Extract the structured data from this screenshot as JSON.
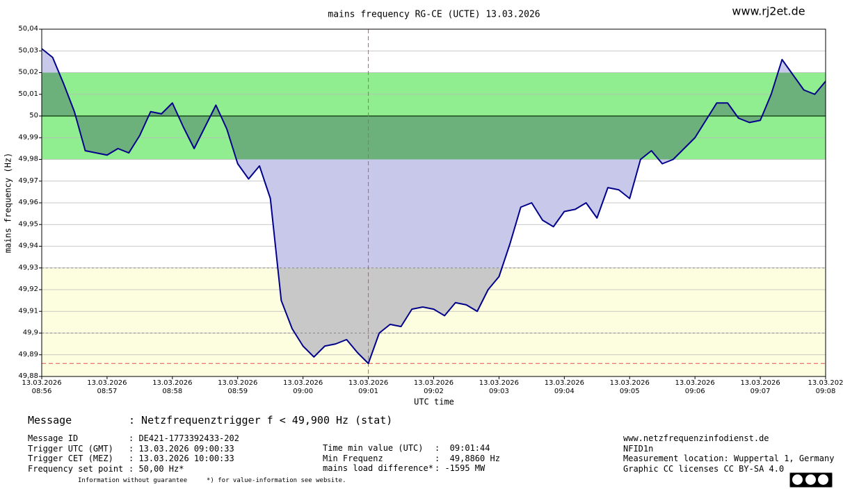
{
  "chart_data": {
    "type": "line",
    "title": "mains frequency RG-CE (UCTE) 13.03.2026",
    "watermark": "www.rj2et.de",
    "y_label": "mains frequency (Hz)",
    "x_label": "UTC time",
    "categories": [
      "13.03.2026\n08:56",
      null,
      null,
      null,
      null,
      null,
      "13.03.2026\n08:57",
      null,
      null,
      null,
      null,
      null,
      "13.03.2026\n08:58",
      null,
      null,
      null,
      null,
      null,
      "13.03.2026\n08:59",
      null,
      null,
      null,
      null,
      null,
      "13.03.2026\n09:00",
      null,
      null,
      null,
      null,
      null,
      "13.03.2026\n09:01",
      null,
      null,
      null,
      null,
      null,
      "13.03.2026\n09:02",
      null,
      null,
      null,
      null,
      null,
      "13.03.2026\n09:03",
      null,
      null,
      null,
      null,
      null,
      "13.03.2026\n09:04",
      null,
      null,
      null,
      null,
      null,
      "13.03.2026\n09:05",
      null,
      null,
      null,
      null,
      null,
      "13.03.2026\n09:06",
      null,
      null,
      null,
      null,
      null,
      "13.03.2026\n09:07",
      null,
      null,
      null,
      null,
      null,
      "13.03.202\n09:08"
    ],
    "values": [
      50.031,
      50.027,
      50.015,
      50.002,
      49.984,
      49.983,
      49.982,
      49.985,
      49.983,
      49.991,
      50.002,
      50.001,
      50.006,
      49.995,
      49.985,
      49.995,
      50.005,
      49.994,
      49.978,
      49.971,
      49.977,
      49.962,
      49.915,
      49.902,
      49.894,
      49.889,
      49.894,
      49.895,
      49.897,
      49.891,
      49.886,
      49.9,
      49.904,
      49.903,
      49.911,
      49.912,
      49.911,
      49.908,
      49.914,
      49.913,
      49.91,
      49.92,
      49.926,
      49.941,
      49.958,
      49.96,
      49.952,
      49.949,
      49.956,
      49.957,
      49.96,
      49.953,
      49.967,
      49.966,
      49.962,
      49.98,
      49.984,
      49.978,
      49.98,
      49.985,
      49.99,
      49.998,
      50.006,
      50.006,
      49.999,
      49.997,
      49.998,
      50.01,
      50.026,
      50.019,
      50.012,
      50.01,
      50.016
    ],
    "color": "#00008b",
    "fill_color": "#c8c8ea",
    "ylim": [
      49.88,
      50.04
    ],
    "yticks": [
      {
        "value": 49.88,
        "label": "49,88"
      },
      {
        "value": 49.89,
        "label": "49,89"
      },
      {
        "value": 49.9,
        "label": "49,9"
      },
      {
        "value": 49.91,
        "label": "49,91"
      },
      {
        "value": 49.92,
        "label": "49,92"
      },
      {
        "value": 49.93,
        "label": "49,93"
      },
      {
        "value": 49.94,
        "label": "49,94"
      },
      {
        "value": 49.95,
        "label": "49,95"
      },
      {
        "value": 49.96,
        "label": "49,96"
      },
      {
        "value": 49.97,
        "label": "49,97"
      },
      {
        "value": 49.98,
        "label": "49,98"
      },
      {
        "value": 49.99,
        "label": "49,99"
      },
      {
        "value": 50,
        "label": "50"
      },
      {
        "value": 50.01,
        "label": "50,01"
      },
      {
        "value": 50.02,
        "label": "50,02"
      },
      {
        "value": 50.03,
        "label": "50,03"
      },
      {
        "value": 50.04,
        "label": "50,04"
      }
    ],
    "grid": true,
    "bands": [
      {
        "from": 49.98,
        "to": 50.02,
        "color": "#90ee90",
        "fill_color": "#6cb07c"
      },
      {
        "from": 49.88,
        "to": 49.93,
        "color": "#fdfde0",
        "fill_color": "#c8c8c8"
      }
    ],
    "hlines": [
      {
        "value": 50,
        "color": "#1a4a1a",
        "dashed": false
      },
      {
        "value": 49.93,
        "color": "#888888",
        "dashed": true
      },
      {
        "value": 49.9,
        "color": "#888888",
        "dashed": true
      }
    ],
    "min_marker_color": "#e05050"
  },
  "message": {
    "label": "Message",
    "text": ": Netzfrequenztrigger f < 49,900 Hz (stat)"
  },
  "details": [
    [
      "Message ID",
      ": DE421-1773392433-202"
    ],
    [
      "Trigger UTC (GMT)",
      ": 13.03.2026 09:00:33"
    ],
    [
      "Trigger CET (MEZ)",
      ": 13.03.2026 10:00:33"
    ],
    [
      "Frequency set point",
      ": 50,00 Hz*"
    ]
  ],
  "min_info": [
    [
      "Time min value (UTC)",
      ":  09:01:44"
    ],
    [
      "Min Frequenz",
      ":  49,8860 Hz"
    ],
    [
      "mains load difference*",
      ": -1595 MW"
    ]
  ],
  "site_info": [
    "www.netzfrequenzinfodienst.de",
    "NFID1n",
    "Measurement location: Wuppertal 1, Germany",
    "Graphic CC licenses CC BY-SA 4.0"
  ],
  "footer": [
    "Information without guarantee",
    "*) for value-information see website."
  ]
}
